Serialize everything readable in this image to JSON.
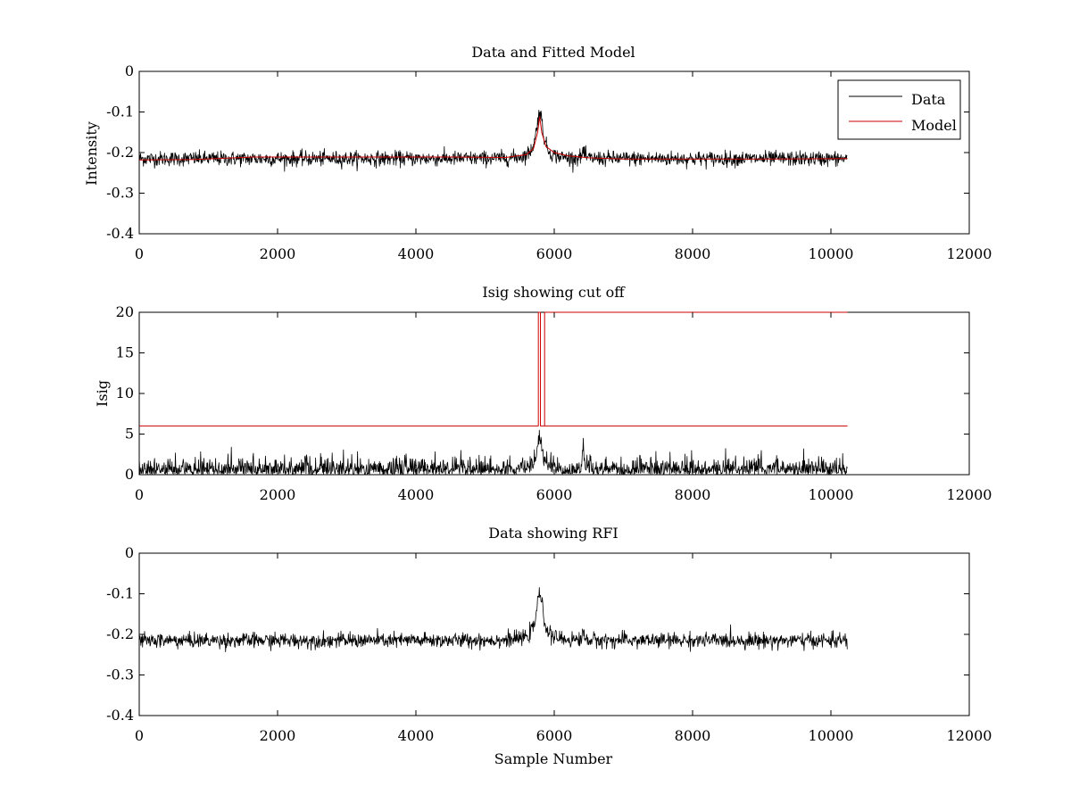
{
  "figure": {
    "xlabel": "Sample Number"
  },
  "chart_data": [
    {
      "type": "line",
      "title": "Data and Fitted Model",
      "xlabel": "",
      "ylabel": "Intensity",
      "xlim": [
        0,
        12000
      ],
      "ylim": [
        -0.4,
        0
      ],
      "xticks": [
        0,
        2000,
        4000,
        6000,
        8000,
        10000,
        12000
      ],
      "yticks": [
        -0.4,
        -0.3,
        -0.2,
        -0.1,
        0
      ],
      "ytick_labels": [
        "-0.4",
        "-0.3",
        "-0.2",
        "-0.1",
        "0"
      ],
      "legend": {
        "position": "top-right",
        "entries": [
          "Data",
          "Model"
        ]
      },
      "series": [
        {
          "name": "Data",
          "color": "#000000",
          "kind": "noisy",
          "n_samples": 10240,
          "baseline": -0.215,
          "noise_amplitude": 0.015,
          "peaks": [
            {
              "x": 5790,
              "height": 0.115,
              "width": 60
            },
            {
              "x": 6420,
              "height": 0.02,
              "width": 15
            }
          ]
        },
        {
          "name": "Model",
          "color": "#cc0000",
          "kind": "smooth",
          "x": [
            0,
            800,
            1500,
            1650,
            3000,
            4500,
            5300,
            5600,
            5700,
            5760,
            5790,
            5820,
            5880,
            6000,
            6200,
            6500,
            7000,
            8000,
            9000,
            10240
          ],
          "y": [
            -0.218,
            -0.217,
            -0.212,
            -0.211,
            -0.211,
            -0.211,
            -0.212,
            -0.205,
            -0.19,
            -0.15,
            -0.112,
            -0.15,
            -0.185,
            -0.2,
            -0.208,
            -0.213,
            -0.216,
            -0.216,
            -0.216,
            -0.215
          ]
        }
      ]
    },
    {
      "type": "line",
      "title": "Isig showing cut off",
      "xlabel": "",
      "ylabel": "Isig",
      "xlim": [
        0,
        12000
      ],
      "ylim": [
        0,
        20
      ],
      "xticks": [
        0,
        2000,
        4000,
        6000,
        8000,
        10000,
        12000
      ],
      "yticks": [
        0,
        5,
        10,
        15,
        20
      ],
      "ytick_labels": [
        "0",
        "5",
        "10",
        "15",
        "20"
      ],
      "series": [
        {
          "name": "Isig",
          "color": "#000000",
          "kind": "noisy_abs",
          "n_samples": 10240,
          "baseline": 0,
          "noise_amplitude": 1.0,
          "peaks": [
            {
              "x": 5790,
              "height": 5.5,
              "width": 40
            },
            {
              "x": 6420,
              "height": 3.8,
              "width": 12
            }
          ]
        },
        {
          "name": "Cut off",
          "color": "#cc0000",
          "kind": "poly",
          "x": [
            0,
            5770,
            5770,
            5800,
            5800,
            5860,
            5860,
            10240
          ],
          "y": [
            6,
            6,
            20,
            20,
            6,
            6,
            20,
            20
          ],
          "tail_x": [
            5860,
            10240
          ],
          "tail_y": [
            6,
            6
          ]
        }
      ]
    },
    {
      "type": "line",
      "title": "Data showing RFI",
      "xlabel": "Sample Number",
      "ylabel": "",
      "xlim": [
        0,
        12000
      ],
      "ylim": [
        -0.4,
        0
      ],
      "xticks": [
        0,
        2000,
        4000,
        6000,
        8000,
        10000,
        12000
      ],
      "yticks": [
        -0.4,
        -0.3,
        -0.2,
        -0.1,
        0
      ],
      "ytick_labels": [
        "-0.4",
        "-0.3",
        "-0.2",
        "-0.1",
        "0"
      ],
      "series": [
        {
          "name": "Data",
          "color": "#000000",
          "kind": "noisy",
          "n_samples": 10240,
          "baseline": -0.215,
          "noise_amplitude": 0.015,
          "peaks": [
            {
              "x": 5790,
              "height": 0.115,
              "width": 60
            },
            {
              "x": 6420,
              "height": 0.02,
              "width": 15
            }
          ]
        }
      ]
    }
  ]
}
